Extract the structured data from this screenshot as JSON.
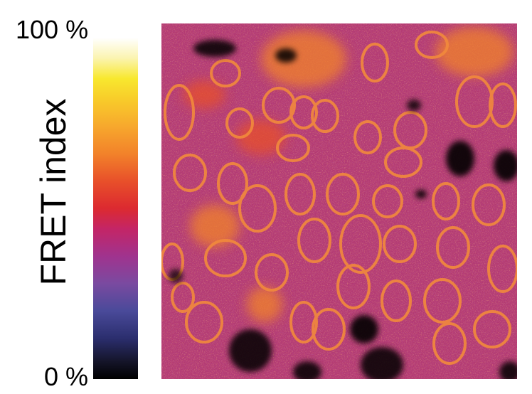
{
  "colorbar": {
    "max_label": "100 %",
    "min_label": "0 %",
    "title": "FRET index",
    "stops": [
      "#000000",
      "#2b2e6e",
      "#7a4aa0",
      "#c42566",
      "#dc2a30",
      "#f2822a",
      "#f8cc2a",
      "#fbf4b0",
      "#ffffff"
    ]
  },
  "image": {
    "description_colors": {
      "background": "#b23a74",
      "cell_outline": "#f28a3c",
      "dark_region": "#000000"
    }
  }
}
